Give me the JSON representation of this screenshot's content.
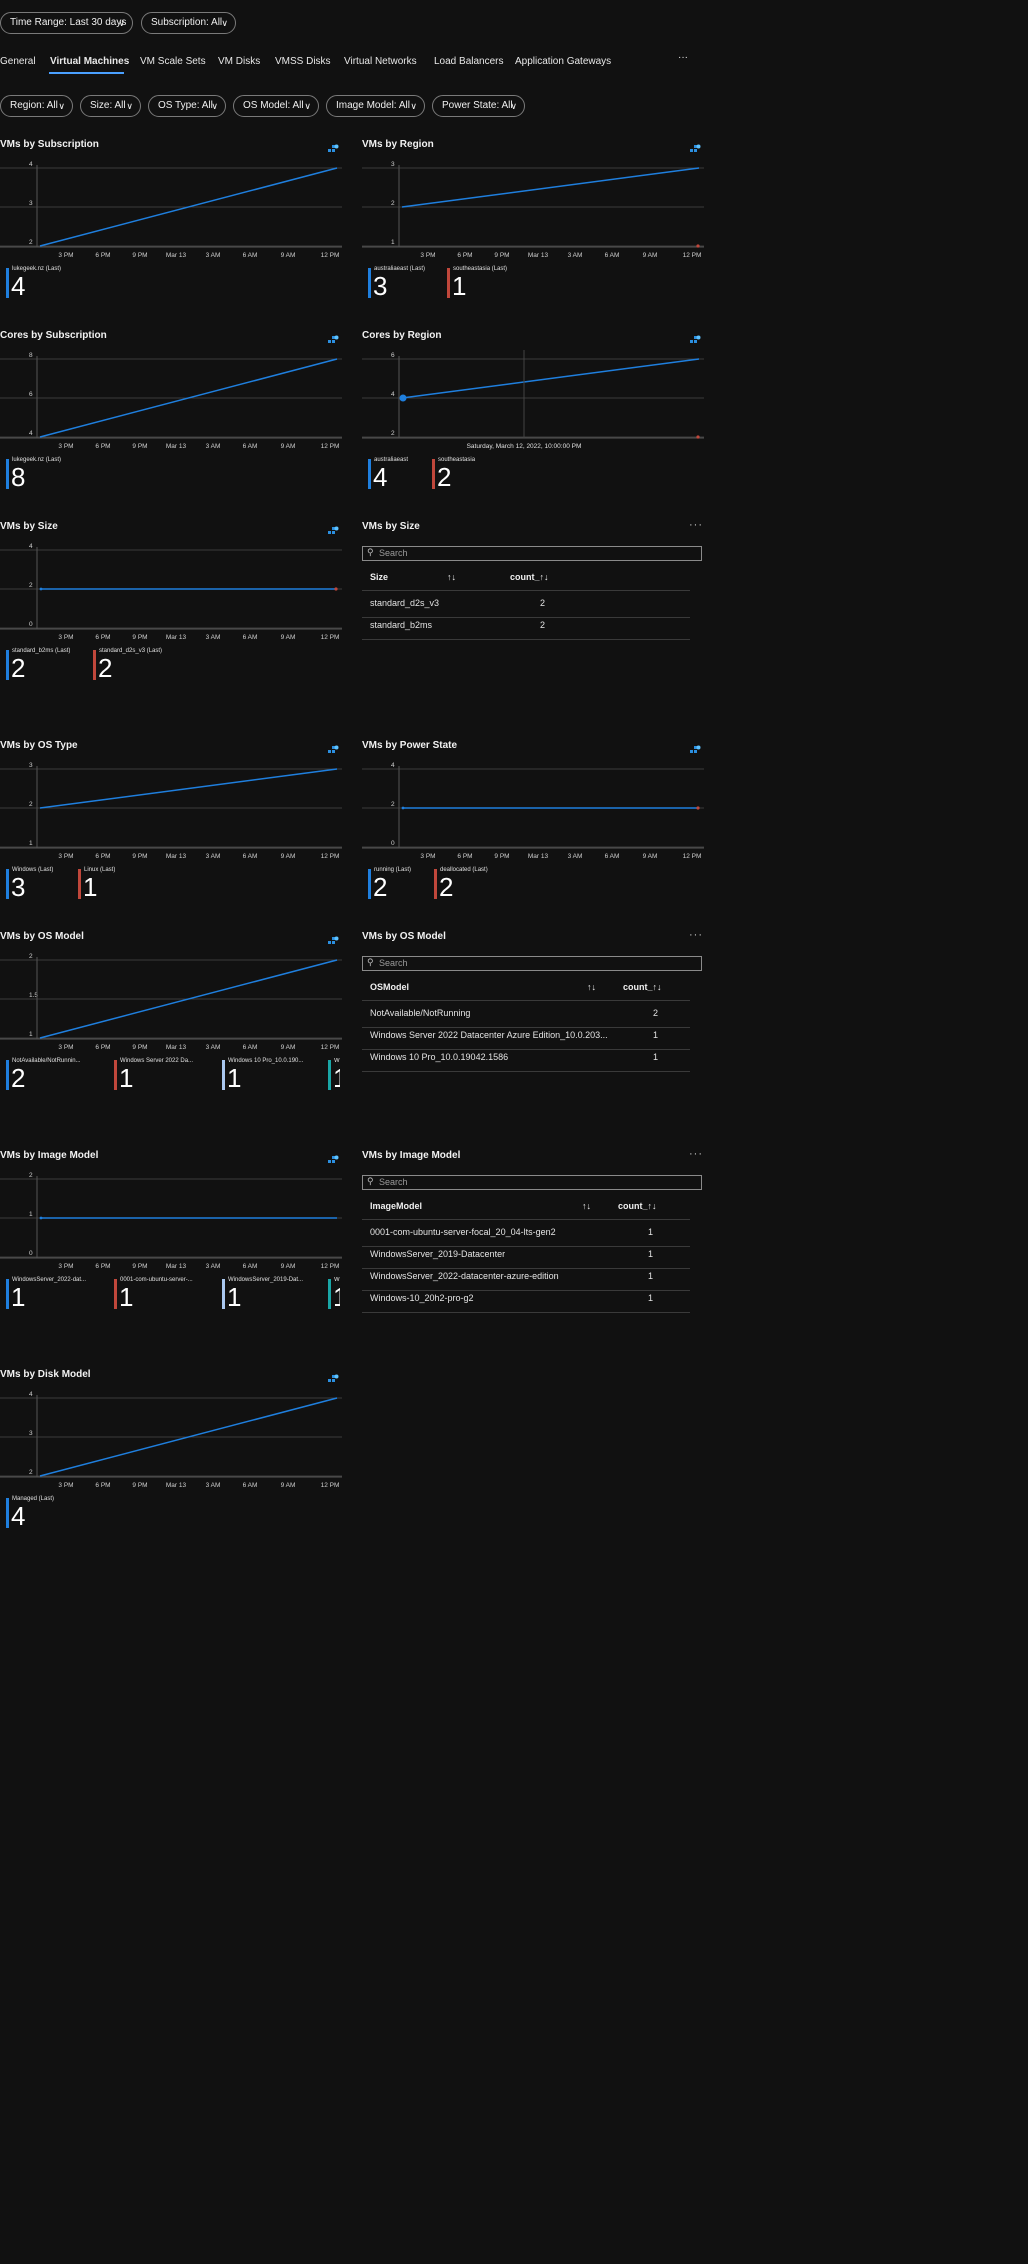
{
  "filters_top": [
    {
      "label": "Time Range: Last 30 days"
    },
    {
      "label": "Subscription: All"
    }
  ],
  "tabs": [
    {
      "label": "General"
    },
    {
      "label": "Virtual Machines",
      "active": true
    },
    {
      "label": "VM Scale Sets"
    },
    {
      "label": "VM Disks"
    },
    {
      "label": "VMSS Disks"
    },
    {
      "label": "Virtual Networks"
    },
    {
      "label": "Load Balancers"
    },
    {
      "label": "Application Gateways"
    }
  ],
  "tabs_more": "···",
  "filters": [
    {
      "label": "Region: All"
    },
    {
      "label": "Size: All"
    },
    {
      "label": "OS Type: All"
    },
    {
      "label": "OS Model: All"
    },
    {
      "label": "Image Model: All"
    },
    {
      "label": "Power State: All"
    }
  ],
  "colors": {
    "blue": "#1f7fde",
    "red": "#c0473b",
    "lightblue": "#aac8f0",
    "teal": "#1aa6a6"
  },
  "x_ticks": [
    "3 PM",
    "6 PM",
    "9 PM",
    "Mar 13",
    "3 AM",
    "6 AM",
    "9 AM",
    "12 PM"
  ],
  "charts": [
    {
      "title": "VMs by Subscription",
      "yticks": [
        "4",
        "3",
        "2"
      ],
      "series": [
        {
          "color": "blue",
          "from": 2,
          "to": 4
        }
      ],
      "ylim": [
        2,
        4
      ],
      "legend": [
        {
          "name": "lukegeek.nz (Last)",
          "value": "4",
          "color": "blue"
        }
      ]
    },
    {
      "title": "VMs by Region",
      "yticks": [
        "3",
        "2",
        "1"
      ],
      "series": [
        {
          "color": "blue",
          "from": 2,
          "to": 3
        },
        {
          "color": "red",
          "dotEnd": 1
        }
      ],
      "ylim": [
        1,
        3
      ],
      "legend": [
        {
          "name": "australiaeast (Last)",
          "value": "3",
          "color": "blue"
        },
        {
          "name": "southeastasia (Last)",
          "value": "1",
          "color": "red"
        }
      ]
    },
    {
      "title": "Cores by Subscription",
      "yticks": [
        "8",
        "6",
        "4"
      ],
      "series": [
        {
          "color": "blue",
          "from": 4,
          "to": 8
        }
      ],
      "ylim": [
        4,
        8
      ],
      "legend": [
        {
          "name": "lukegeek.nz (Last)",
          "value": "8",
          "color": "blue"
        }
      ]
    },
    {
      "title": "Cores by Region",
      "yticks": [
        "6",
        "4",
        "2"
      ],
      "series": [
        {
          "color": "blue",
          "from": 4,
          "to": 6
        },
        {
          "color": "red",
          "dotEnd": 2
        }
      ],
      "ylim": [
        2,
        6
      ],
      "hover_label": "Saturday, March 12, 2022, 10:00:00 PM",
      "legend": [
        {
          "name": "australiaeast",
          "value": "4",
          "color": "blue"
        },
        {
          "name": "southeastasia",
          "value": "2",
          "color": "red"
        }
      ]
    },
    {
      "title": "VMs by Size",
      "yticks": [
        "4",
        "2",
        "0"
      ],
      "series": [
        {
          "color": "blue",
          "from": 2,
          "to": 2
        },
        {
          "color": "red",
          "dotEnd": 2
        }
      ],
      "ylim": [
        0,
        4
      ],
      "legend": [
        {
          "name": "standard_b2ms (Last)",
          "value": "2",
          "color": "blue"
        },
        {
          "name": "standard_d2s_v3 (Last)",
          "value": "2",
          "color": "red"
        }
      ]
    },
    {
      "title": "VMs by OS Type",
      "yticks": [
        "3",
        "2",
        "1"
      ],
      "series": [
        {
          "color": "blue",
          "from": 2,
          "to": 3
        }
      ],
      "ylim": [
        1,
        3
      ],
      "legend": [
        {
          "name": "Windows (Last)",
          "value": "3",
          "color": "blue"
        },
        {
          "name": "Linux (Last)",
          "value": "1",
          "color": "red"
        }
      ]
    },
    {
      "title": "VMs by Power State",
      "yticks": [
        "4",
        "2",
        "0"
      ],
      "series": [
        {
          "color": "blue",
          "from": 2,
          "to": 2
        },
        {
          "color": "red",
          "dotEnd": 2
        }
      ],
      "ylim": [
        0,
        4
      ],
      "legend": [
        {
          "name": "running (Last)",
          "value": "2",
          "color": "blue"
        },
        {
          "name": "deallocated (Last)",
          "value": "2",
          "color": "red"
        }
      ]
    },
    {
      "title": "VMs by OS Model",
      "yticks": [
        "2",
        "1.5",
        "1"
      ],
      "series": [
        {
          "color": "blue",
          "from": 1,
          "to": 2
        }
      ],
      "ylim": [
        1,
        2
      ],
      "legend": [
        {
          "name": "NotAvailable/NotRunnin...",
          "value": "2",
          "color": "blue"
        },
        {
          "name": "Windows Server 2022 Da...",
          "value": "1",
          "color": "red"
        },
        {
          "name": "Windows 10 Pro_10.0.190...",
          "value": "1",
          "color": "lightblue"
        },
        {
          "name": "W",
          "value": "1",
          "color": "teal"
        }
      ]
    },
    {
      "title": "VMs by Image Model",
      "yticks": [
        "2",
        "1",
        "0"
      ],
      "series": [
        {
          "color": "blue",
          "from": 1,
          "to": 1
        }
      ],
      "ylim": [
        0,
        2
      ],
      "legend": [
        {
          "name": "WindowsServer_2022-dat...",
          "value": "1",
          "color": "blue"
        },
        {
          "name": "0001-com-ubuntu-server-...",
          "value": "1",
          "color": "red"
        },
        {
          "name": "WindowsServer_2019-Dat...",
          "value": "1",
          "color": "lightblue"
        },
        {
          "name": "W",
          "value": "1",
          "color": "teal"
        }
      ]
    },
    {
      "title": "VMs by Disk Model",
      "yticks": [
        "4",
        "3",
        "2"
      ],
      "series": [
        {
          "color": "blue",
          "from": 2,
          "to": 4
        }
      ],
      "ylim": [
        2,
        4
      ],
      "legend": [
        {
          "name": "Managed (Last)",
          "value": "4",
          "color": "blue"
        }
      ]
    }
  ],
  "tables": [
    {
      "title": "VMs by Size",
      "search_placeholder": "Search",
      "columns": [
        "Size",
        "count_"
      ],
      "sort_icon": "↑↓",
      "rows": [
        [
          "standard_d2s_v3",
          "2"
        ],
        [
          "standard_b2ms",
          "2"
        ]
      ]
    },
    {
      "title": "VMs by OS Model",
      "search_placeholder": "Search",
      "columns": [
        "OSModel",
        "count_"
      ],
      "sort_icon": "↑↓",
      "rows": [
        [
          "NotAvailable/NotRunning",
          "2"
        ],
        [
          "Windows Server 2022 Datacenter Azure Edition_10.0.203...",
          "1"
        ],
        [
          "Windows 10 Pro_10.0.19042.1586",
          "1"
        ]
      ]
    },
    {
      "title": "VMs by Image Model",
      "search_placeholder": "Search",
      "columns": [
        "ImageModel",
        "count_"
      ],
      "sort_icon": "↑↓",
      "rows": [
        [
          "0001-com-ubuntu-server-focal_20_04-lts-gen2",
          "1"
        ],
        [
          "WindowsServer_2019-Datacenter",
          "1"
        ],
        [
          "WindowsServer_2022-datacenter-azure-edition",
          "1"
        ],
        [
          "Windows-10_20h2-pro-g2",
          "1"
        ]
      ]
    }
  ],
  "chart_data": [
    {
      "type": "line",
      "title": "VMs by Subscription",
      "x": [
        "3 PM",
        "6 PM",
        "9 PM",
        "Mar 13",
        "3 AM",
        "6 AM",
        "9 AM",
        "12 PM"
      ],
      "ylim": [
        2,
        4
      ],
      "series": [
        {
          "name": "lukegeek.nz (Last)",
          "start": 2,
          "end": 4
        }
      ]
    },
    {
      "type": "line",
      "title": "VMs by Region",
      "ylim": [
        1,
        3
      ],
      "series": [
        {
          "name": "australiaeast (Last)",
          "start": 2,
          "end": 3
        },
        {
          "name": "southeastasia (Last)",
          "end": 1
        }
      ]
    },
    {
      "type": "line",
      "title": "Cores by Subscription",
      "ylim": [
        4,
        8
      ],
      "series": [
        {
          "name": "lukegeek.nz (Last)",
          "start": 4,
          "end": 8
        }
      ]
    },
    {
      "type": "line",
      "title": "Cores by Region",
      "ylim": [
        2,
        6
      ],
      "series": [
        {
          "name": "australiaeast",
          "start": 4,
          "end": 6
        },
        {
          "name": "southeastasia",
          "end": 2
        }
      ]
    },
    {
      "type": "line",
      "title": "VMs by Size",
      "ylim": [
        0,
        4
      ],
      "series": [
        {
          "name": "standard_b2ms (Last)",
          "start": 2,
          "end": 2
        },
        {
          "name": "standard_d2s_v3 (Last)",
          "end": 2
        }
      ]
    },
    {
      "type": "line",
      "title": "VMs by OS Type",
      "ylim": [
        1,
        3
      ],
      "series": [
        {
          "name": "Windows (Last)",
          "start": 2,
          "end": 3
        },
        {
          "name": "Linux (Last)",
          "end": 1
        }
      ]
    },
    {
      "type": "line",
      "title": "VMs by Power State",
      "ylim": [
        0,
        4
      ],
      "series": [
        {
          "name": "running (Last)",
          "start": 2,
          "end": 2
        },
        {
          "name": "deallocated (Last)",
          "end": 2
        }
      ]
    },
    {
      "type": "line",
      "title": "VMs by OS Model",
      "ylim": [
        1,
        2
      ],
      "series": [
        {
          "name": "NotAvailable/NotRunnin...",
          "start": 1,
          "end": 2
        }
      ]
    },
    {
      "type": "line",
      "title": "VMs by Image Model",
      "ylim": [
        0,
        2
      ],
      "series": [
        {
          "name": "WindowsServer_2022-dat...",
          "start": 1,
          "end": 1
        }
      ]
    },
    {
      "type": "line",
      "title": "VMs by Disk Model",
      "ylim": [
        2,
        4
      ],
      "series": [
        {
          "name": "Managed (Last)",
          "start": 2,
          "end": 4
        }
      ]
    }
  ]
}
